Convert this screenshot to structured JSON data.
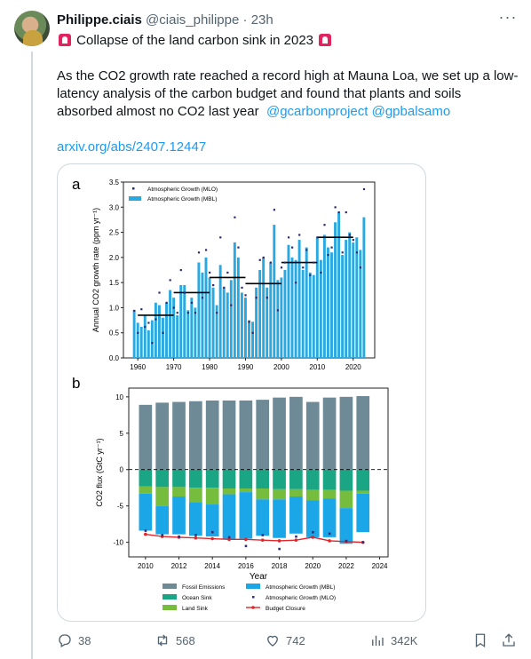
{
  "user": {
    "name": "Philippe.ciais",
    "handle": "@ciais_philippe",
    "dot": "·",
    "time": "23h"
  },
  "tweet": {
    "title_line": "Collapse of the land carbon sink in 2023",
    "body_1": "As the CO2 growth rate reached a record high at Mauna Loa, we set up a low-latency analysis of the carbon budget and found that plants and soils absorbed almost no CO2 last year",
    "mention_1": "@gcarbonproject",
    "mention_2": "@gpbalsamo",
    "link": "arxiv.org/abs/2407.12447"
  },
  "actions": {
    "replies": "38",
    "retweets": "568",
    "likes": "742",
    "views": "342K"
  },
  "icons": [
    "siren-icon",
    "more-icon",
    "reply-icon",
    "retweet-icon",
    "like-icon",
    "views-icon",
    "bookmark-icon",
    "share-icon"
  ],
  "colors": {
    "accent": "#1d9bf0",
    "muted": "#536471",
    "siren": "#e0245e"
  },
  "chart_data": [
    {
      "panel": "a",
      "type": "bar",
      "ylabel": "Annual CO2 growth rate (ppm yr⁻¹)",
      "x_ticks": [
        1960,
        1970,
        1980,
        1990,
        2000,
        2010,
        2020
      ],
      "y_ticks": [
        0.0,
        0.5,
        1.0,
        1.5,
        2.0,
        2.5,
        3.0,
        3.5
      ],
      "xlim": [
        1956,
        2026
      ],
      "ylim": [
        0,
        3.5
      ],
      "legend": [
        "Atmospheric Growth (MLO)",
        "Atmospheric Growth (MBL)"
      ],
      "years": [
        1959,
        1960,
        1961,
        1962,
        1963,
        1964,
        1965,
        1966,
        1967,
        1968,
        1969,
        1970,
        1971,
        1972,
        1973,
        1974,
        1975,
        1976,
        1977,
        1978,
        1979,
        1980,
        1981,
        1982,
        1983,
        1984,
        1985,
        1986,
        1987,
        1988,
        1989,
        1990,
        1991,
        1992,
        1993,
        1994,
        1995,
        1996,
        1997,
        1998,
        1999,
        2000,
        2001,
        2002,
        2003,
        2004,
        2005,
        2006,
        2007,
        2008,
        2009,
        2010,
        2011,
        2012,
        2013,
        2014,
        2015,
        2016,
        2017,
        2018,
        2019,
        2020,
        2021,
        2022,
        2023
      ],
      "mbl": [
        0.95,
        0.7,
        0.62,
        0.85,
        0.55,
        0.75,
        1.1,
        1.05,
        0.8,
        1.1,
        1.35,
        1.2,
        0.85,
        1.45,
        1.45,
        0.95,
        1.2,
        1.0,
        1.9,
        1.7,
        2.0,
        1.6,
        1.4,
        1.05,
        1.85,
        1.4,
        1.3,
        1.55,
        2.3,
        2.0,
        1.3,
        1.2,
        0.75,
        0.72,
        1.4,
        1.75,
        2.0,
        1.4,
        1.9,
        2.65,
        1.55,
        1.6,
        1.75,
        2.25,
        2.0,
        1.95,
        2.35,
        1.75,
        2.2,
        1.7,
        1.65,
        2.4,
        1.95,
        2.45,
        2.2,
        2.1,
        2.7,
        2.9,
        2.05,
        2.35,
        2.5,
        2.3,
        2.4,
        2.15,
        2.8
      ],
      "mlo": [
        0.94,
        0.5,
        0.97,
        0.62,
        0.7,
        0.3,
        0.77,
        1.3,
        0.5,
        1.1,
        1.55,
        1.0,
        0.9,
        1.75,
        1.3,
        0.9,
        1.1,
        0.9,
        2.1,
        1.2,
        2.15,
        1.7,
        1.45,
        0.9,
        2.4,
        1.4,
        1.7,
        1.05,
        2.8,
        2.2,
        1.4,
        1.25,
        0.72,
        0.5,
        1.2,
        1.95,
        2.0,
        1.2,
        1.9,
        2.95,
        0.95,
        1.8,
        1.9,
        2.4,
        2.2,
        1.5,
        2.45,
        1.8,
        2.15,
        1.65,
        1.9,
        2.4,
        1.7,
        2.65,
        2.05,
        2.2,
        3.0,
        2.9,
        2.1,
        2.9,
        2.45,
        2.35,
        2.1,
        1.8,
        3.36
      ],
      "decadal_means": [
        {
          "x0": 1960,
          "x1": 1970,
          "y": 0.85
        },
        {
          "x0": 1970,
          "x1": 1980,
          "y": 1.3
        },
        {
          "x0": 1980,
          "x1": 1990,
          "y": 1.6
        },
        {
          "x0": 1990,
          "x1": 2000,
          "y": 1.48
        },
        {
          "x0": 2000,
          "x1": 2010,
          "y": 1.9
        },
        {
          "x0": 2010,
          "x1": 2020,
          "y": 2.4
        }
      ]
    },
    {
      "panel": "b",
      "type": "bar",
      "xlabel": "Year",
      "ylabel": "CO2 flux (GtC yr⁻¹)",
      "x_ticks": [
        2010,
        2012,
        2014,
        2016,
        2018,
        2020,
        2022,
        2024
      ],
      "y_ticks": [
        -10,
        -5,
        0,
        5,
        10
      ],
      "xlim": [
        2009,
        2024.5
      ],
      "ylim": [
        -12,
        11.2
      ],
      "legend": [
        "Fossil Emissions",
        "Ocean Sink",
        "Land Sink",
        "Atmospheric Growth (MBL)",
        "Atmospheric Growth (MLO)",
        "Budget Closure"
      ],
      "years": [
        2010,
        2011,
        2012,
        2013,
        2014,
        2015,
        2016,
        2017,
        2018,
        2019,
        2020,
        2021,
        2022,
        2023
      ],
      "fossil": [
        8.9,
        9.2,
        9.3,
        9.4,
        9.5,
        9.5,
        9.5,
        9.6,
        9.9,
        10.0,
        9.3,
        9.9,
        10.0,
        10.1
      ],
      "ocean": [
        -2.3,
        -2.4,
        -2.4,
        -2.5,
        -2.5,
        -2.6,
        -2.6,
        -2.6,
        -2.7,
        -2.7,
        -2.8,
        -2.8,
        -2.9,
        -2.9
      ],
      "land": [
        -1.0,
        -2.6,
        -1.3,
        -2.0,
        -2.3,
        -0.8,
        -0.5,
        -1.5,
        -1.4,
        -1.0,
        -1.4,
        -1.2,
        -2.4,
        -0.4
      ],
      "atm_mbl": [
        -5.1,
        -3.9,
        -5.2,
        -4.6,
        -4.4,
        -6.2,
        -6.4,
        -5.0,
        -5.3,
        -5.1,
        -5.1,
        -5.3,
        -4.9,
        -5.3
      ],
      "atm_mlo": [
        -8.4,
        -9.0,
        -9.2,
        -9.0,
        -8.6,
        -9.3,
        -10.5,
        -9.0,
        -10.9,
        -9.2,
        -8.6,
        -8.8,
        -9.8,
        -10.0
      ],
      "budget_closure": [
        -8.9,
        -9.2,
        -9.3,
        -9.4,
        -9.5,
        -9.6,
        -9.6,
        -9.7,
        -9.8,
        -9.7,
        -9.3,
        -9.8,
        -9.9,
        -10.0
      ],
      "colors": {
        "fossil": "#6e8a97",
        "ocean": "#1aa584",
        "land": "#76bd3e",
        "atm_mbl": "#1ba6e8",
        "atm_mlo": "#2f2f7a",
        "budget": "#e0262b"
      }
    }
  ]
}
